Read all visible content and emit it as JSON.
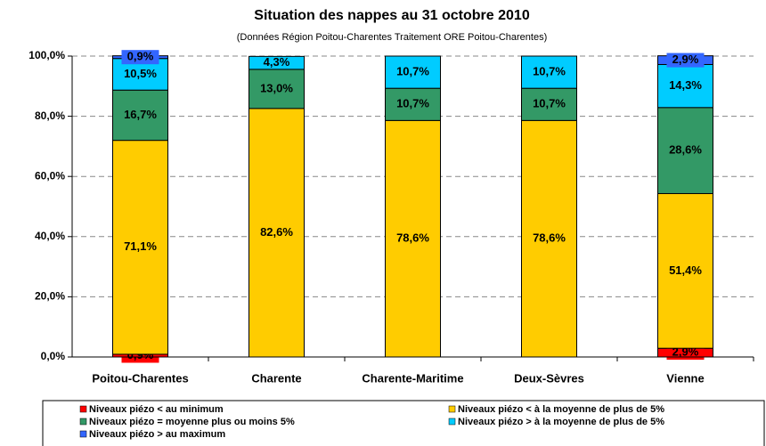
{
  "chart_data": {
    "type": "stacked_bar",
    "title": "Situation des nappes au 31 octobre 2010",
    "subtitle": "(Données Région Poitou-Charentes Traitement ORE Poitou-Charentes)",
    "categories": [
      "Poitou-Charentes",
      "Charente",
      "Charente-Maritime",
      "Deux-Sèvres",
      "Vienne"
    ],
    "series": [
      {
        "name": "Niveaux piézo < au minimum",
        "color": "#ff0000",
        "values": [
          0.9,
          0,
          0,
          0,
          2.9
        ],
        "value_labels": [
          "0,9%",
          null,
          null,
          null,
          "2,9%"
        ]
      },
      {
        "name": "Niveaux piézo < à la moyenne de plus de 5%",
        "color": "#ffcc00",
        "values": [
          71.1,
          82.6,
          78.6,
          78.6,
          51.4
        ],
        "value_labels": [
          "71,1%",
          "82,6%",
          "78,6%",
          "78,6%",
          "51,4%"
        ]
      },
      {
        "name": "Niveaux piézo = moyenne plus ou moins 5%",
        "color": "#339966",
        "values": [
          16.7,
          13.0,
          10.7,
          10.7,
          28.6
        ],
        "value_labels": [
          "16,7%",
          "13,0%",
          "10,7%",
          "10,7%",
          "28,6%"
        ]
      },
      {
        "name": "Niveaux piézo > à la moyenne de plus de 5%",
        "color": "#00ccff",
        "values": [
          10.5,
          4.3,
          10.7,
          10.7,
          14.3
        ],
        "value_labels": [
          "10,5%",
          "4,3%",
          "10,7%",
          "10,7%",
          "14,3%"
        ]
      },
      {
        "name": "Niveaux piézo > au maximum",
        "color": "#3366ff",
        "values": [
          0.9,
          0,
          0,
          0,
          2.9
        ],
        "value_labels": [
          "0,9%",
          null,
          null,
          null,
          "2,9%"
        ]
      }
    ],
    "ylim": [
      0,
      100
    ],
    "yticks": [
      {
        "value": 0,
        "label": "0,0%"
      },
      {
        "value": 20,
        "label": "20,0%"
      },
      {
        "value": 40,
        "label": "40,0%"
      },
      {
        "value": 60,
        "label": "60,0%"
      },
      {
        "value": 80,
        "label": "80,0%"
      },
      {
        "value": 100,
        "label": "100,0%"
      }
    ],
    "grid": true,
    "legend": "bottom"
  }
}
